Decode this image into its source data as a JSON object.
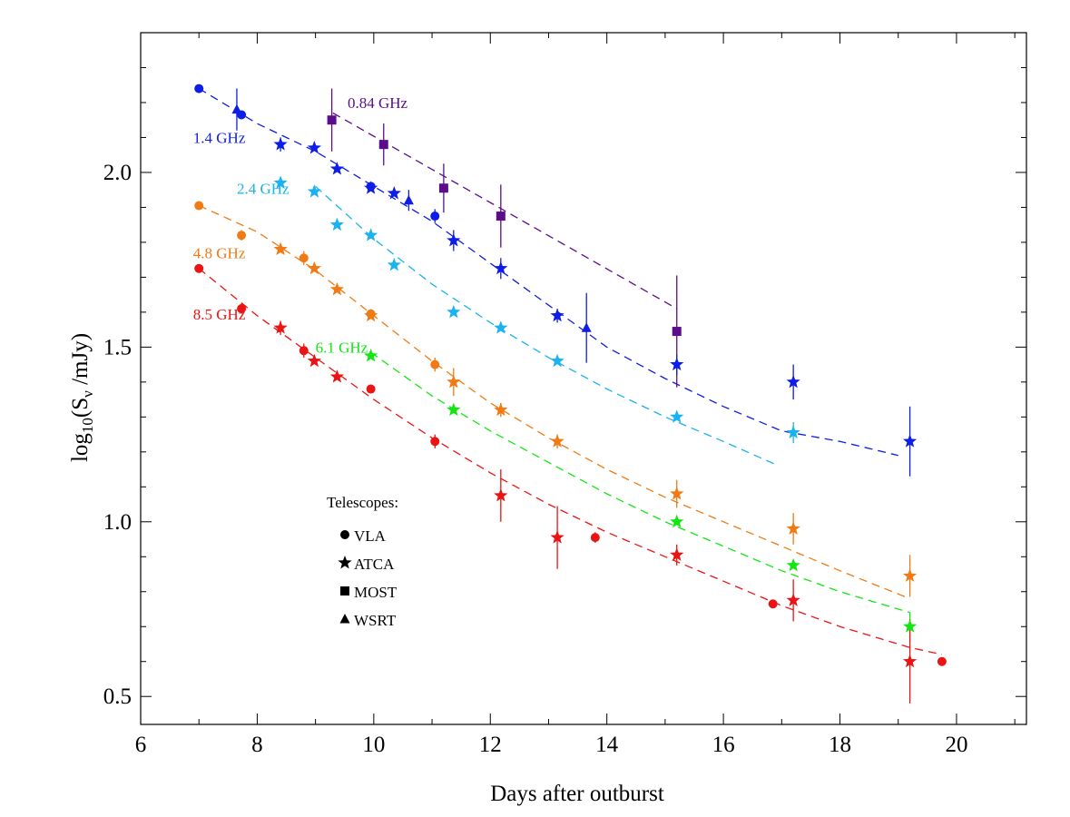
{
  "chart_data": {
    "type": "scatter",
    "xlabel": "Days after outburst",
    "ylabel": "log10(Sν /mJy)",
    "xlim": [
      6,
      21.2
    ],
    "ylim": [
      0.42,
      2.4
    ],
    "xticks": [
      6,
      8,
      10,
      12,
      14,
      16,
      18,
      20
    ],
    "xtick_labels": [
      "6",
      "8",
      "10",
      "12",
      "14",
      "16",
      "18",
      "20"
    ],
    "yticks": [
      0.5,
      1.0,
      1.5,
      2.0
    ],
    "ytick_labels": [
      "0.5",
      "1.0",
      "1.5",
      "2.0"
    ],
    "grid": false,
    "legend": {
      "title": "Telescopes:",
      "placement": "lower-left",
      "entries": [
        {
          "marker": "circle",
          "label": "VLA"
        },
        {
          "marker": "star",
          "label": "ATCA"
        },
        {
          "marker": "square",
          "label": "MOST"
        },
        {
          "marker": "triangle",
          "label": "WSRT"
        }
      ]
    },
    "series": [
      {
        "name": "0.84 GHz",
        "color": "#5c0d8c",
        "fit": [
          [
            9.3,
            2.17
          ],
          [
            15.2,
            1.61
          ]
        ],
        "points": [
          {
            "x": 9.28,
            "y": 2.15,
            "err": 0.09,
            "marker": "square"
          },
          {
            "x": 10.17,
            "y": 2.08,
            "err": 0.06,
            "marker": "square"
          },
          {
            "x": 11.2,
            "y": 1.955,
            "err": 0.07,
            "marker": "square"
          },
          {
            "x": 12.18,
            "y": 1.875,
            "err": 0.09,
            "marker": "square"
          },
          {
            "x": 15.2,
            "y": 1.545,
            "err": 0.16,
            "marker": "square"
          }
        ]
      },
      {
        "name": "1.4 GHz",
        "color": "#0e1ee6",
        "fit": [
          [
            7.0,
            2.24
          ],
          [
            8.0,
            2.14
          ],
          [
            9.0,
            2.06
          ],
          [
            10.0,
            1.96
          ],
          [
            11.0,
            1.86
          ],
          [
            12.0,
            1.74
          ],
          [
            13.0,
            1.62
          ],
          [
            14.0,
            1.5
          ],
          [
            15.0,
            1.41
          ],
          [
            16.0,
            1.33
          ],
          [
            17.0,
            1.26
          ],
          [
            18.0,
            1.23
          ],
          [
            19.0,
            1.19
          ]
        ],
        "points": [
          {
            "x": 7.0,
            "y": 2.24,
            "err": 0,
            "marker": "circle"
          },
          {
            "x": 7.65,
            "y": 2.18,
            "err": 0.06,
            "marker": "triangle"
          },
          {
            "x": 7.73,
            "y": 2.165,
            "err": 0,
            "marker": "circle"
          },
          {
            "x": 8.4,
            "y": 2.08,
            "err": 0.02,
            "marker": "star"
          },
          {
            "x": 8.98,
            "y": 2.07,
            "err": 0,
            "marker": "star"
          },
          {
            "x": 9.37,
            "y": 2.01,
            "err": 0,
            "marker": "star"
          },
          {
            "x": 9.95,
            "y": 1.955,
            "err": 0,
            "marker": "star"
          },
          {
            "x": 9.95,
            "y": 1.96,
            "err": 0,
            "marker": "circle"
          },
          {
            "x": 10.35,
            "y": 1.94,
            "err": 0,
            "marker": "star"
          },
          {
            "x": 10.6,
            "y": 1.92,
            "err": 0.03,
            "marker": "triangle"
          },
          {
            "x": 11.05,
            "y": 1.875,
            "err": 0.02,
            "marker": "circle"
          },
          {
            "x": 11.37,
            "y": 1.805,
            "err": 0.03,
            "marker": "star"
          },
          {
            "x": 12.18,
            "y": 1.725,
            "err": 0.03,
            "marker": "star"
          },
          {
            "x": 13.15,
            "y": 1.59,
            "err": 0.02,
            "marker": "star"
          },
          {
            "x": 13.65,
            "y": 1.555,
            "err": 0.1,
            "marker": "triangle"
          },
          {
            "x": 15.2,
            "y": 1.45,
            "err": 0.03,
            "marker": "star"
          },
          {
            "x": 17.2,
            "y": 1.4,
            "err": 0.05,
            "marker": "star"
          },
          {
            "x": 19.2,
            "y": 1.23,
            "err": 0.1,
            "marker": "star"
          }
        ]
      },
      {
        "name": "2.4 GHz",
        "color": "#1ab2f0",
        "fit": [
          [
            9.0,
            1.96
          ],
          [
            10.0,
            1.81
          ],
          [
            11.0,
            1.68
          ],
          [
            12.0,
            1.57
          ],
          [
            13.0,
            1.47
          ],
          [
            14.0,
            1.38
          ],
          [
            15.0,
            1.3
          ],
          [
            16.0,
            1.23
          ],
          [
            16.95,
            1.16
          ]
        ],
        "points": [
          {
            "x": 8.4,
            "y": 1.97,
            "err": 0,
            "marker": "star"
          },
          {
            "x": 8.98,
            "y": 1.945,
            "err": 0,
            "marker": "star"
          },
          {
            "x": 9.37,
            "y": 1.85,
            "err": 0,
            "marker": "star"
          },
          {
            "x": 9.95,
            "y": 1.82,
            "err": 0,
            "marker": "star"
          },
          {
            "x": 10.35,
            "y": 1.735,
            "err": 0,
            "marker": "star"
          },
          {
            "x": 11.37,
            "y": 1.6,
            "err": 0,
            "marker": "star"
          },
          {
            "x": 12.18,
            "y": 1.555,
            "err": 0,
            "marker": "star"
          },
          {
            "x": 13.15,
            "y": 1.46,
            "err": 0,
            "marker": "star"
          },
          {
            "x": 15.2,
            "y": 1.3,
            "err": 0,
            "marker": "star"
          },
          {
            "x": 17.2,
            "y": 1.255,
            "err": 0.03,
            "marker": "star"
          }
        ]
      },
      {
        "name": "4.8 GHz",
        "color": "#f07a14",
        "fit": [
          [
            7.0,
            1.905
          ],
          [
            8.0,
            1.83
          ],
          [
            9.0,
            1.72
          ],
          [
            10.0,
            1.59
          ],
          [
            11.0,
            1.46
          ],
          [
            12.0,
            1.34
          ],
          [
            13.0,
            1.24
          ],
          [
            14.0,
            1.15
          ],
          [
            15.0,
            1.07
          ],
          [
            16.0,
            1.0
          ],
          [
            17.0,
            0.93
          ],
          [
            18.0,
            0.86
          ],
          [
            19.2,
            0.78
          ]
        ],
        "points": [
          {
            "x": 7.0,
            "y": 1.905,
            "err": 0,
            "marker": "circle"
          },
          {
            "x": 7.73,
            "y": 1.82,
            "err": 0.015,
            "marker": "circle"
          },
          {
            "x": 8.4,
            "y": 1.78,
            "err": 0,
            "marker": "star"
          },
          {
            "x": 8.8,
            "y": 1.755,
            "err": 0.02,
            "marker": "circle"
          },
          {
            "x": 8.98,
            "y": 1.725,
            "err": 0,
            "marker": "star"
          },
          {
            "x": 9.37,
            "y": 1.665,
            "err": 0,
            "marker": "star"
          },
          {
            "x": 9.95,
            "y": 1.59,
            "err": 0,
            "marker": "star"
          },
          {
            "x": 9.95,
            "y": 1.595,
            "err": 0,
            "marker": "circle"
          },
          {
            "x": 11.05,
            "y": 1.45,
            "err": 0.02,
            "marker": "circle"
          },
          {
            "x": 11.37,
            "y": 1.4,
            "err": 0.04,
            "marker": "star"
          },
          {
            "x": 12.18,
            "y": 1.32,
            "err": 0.02,
            "marker": "star"
          },
          {
            "x": 13.15,
            "y": 1.23,
            "err": 0.02,
            "marker": "star"
          },
          {
            "x": 15.2,
            "y": 1.08,
            "err": 0.04,
            "marker": "star"
          },
          {
            "x": 17.2,
            "y": 0.98,
            "err": 0.045,
            "marker": "star"
          },
          {
            "x": 19.2,
            "y": 0.845,
            "err": 0.06,
            "marker": "star"
          }
        ]
      },
      {
        "name": "6.1 GHz",
        "color": "#14e614",
        "fit": [
          [
            9.95,
            1.485
          ],
          [
            11.0,
            1.36
          ],
          [
            12.0,
            1.26
          ],
          [
            13.0,
            1.17
          ],
          [
            14.0,
            1.08
          ],
          [
            15.0,
            1.0
          ],
          [
            16.0,
            0.93
          ],
          [
            17.0,
            0.86
          ],
          [
            18.0,
            0.8
          ],
          [
            19.2,
            0.74
          ]
        ],
        "points": [
          {
            "x": 9.95,
            "y": 1.475,
            "err": 0,
            "marker": "star"
          },
          {
            "x": 11.37,
            "y": 1.32,
            "err": 0,
            "marker": "star"
          },
          {
            "x": 15.2,
            "y": 1.0,
            "err": 0,
            "marker": "star"
          },
          {
            "x": 17.2,
            "y": 0.875,
            "err": 0,
            "marker": "star"
          },
          {
            "x": 19.2,
            "y": 0.7,
            "err": 0.04,
            "marker": "star"
          }
        ]
      },
      {
        "name": "8.5 GHz",
        "color": "#eb1414",
        "fit": [
          [
            7.0,
            1.725
          ],
          [
            8.0,
            1.59
          ],
          [
            9.0,
            1.47
          ],
          [
            10.0,
            1.35
          ],
          [
            11.0,
            1.24
          ],
          [
            12.0,
            1.14
          ],
          [
            13.0,
            1.05
          ],
          [
            14.0,
            0.97
          ],
          [
            15.0,
            0.9
          ],
          [
            16.0,
            0.83
          ],
          [
            17.0,
            0.76
          ],
          [
            18.0,
            0.7
          ],
          [
            19.2,
            0.64
          ],
          [
            19.75,
            0.62
          ]
        ],
        "points": [
          {
            "x": 7.0,
            "y": 1.725,
            "err": 0,
            "marker": "circle"
          },
          {
            "x": 7.73,
            "y": 1.61,
            "err": 0.015,
            "marker": "circle"
          },
          {
            "x": 8.4,
            "y": 1.555,
            "err": 0.02,
            "marker": "star"
          },
          {
            "x": 8.8,
            "y": 1.49,
            "err": 0.02,
            "marker": "circle"
          },
          {
            "x": 8.98,
            "y": 1.46,
            "err": 0,
            "marker": "star"
          },
          {
            "x": 9.37,
            "y": 1.415,
            "err": 0,
            "marker": "star"
          },
          {
            "x": 9.95,
            "y": 1.38,
            "err": 0,
            "marker": "circle"
          },
          {
            "x": 11.05,
            "y": 1.23,
            "err": 0.02,
            "marker": "circle"
          },
          {
            "x": 12.18,
            "y": 1.075,
            "err": 0.075,
            "marker": "star"
          },
          {
            "x": 13.15,
            "y": 0.955,
            "err": 0.09,
            "marker": "star"
          },
          {
            "x": 13.8,
            "y": 0.955,
            "err": 0.015,
            "marker": "circle"
          },
          {
            "x": 15.2,
            "y": 0.905,
            "err": 0.03,
            "marker": "star"
          },
          {
            "x": 16.85,
            "y": 0.765,
            "err": 0.01,
            "marker": "circle"
          },
          {
            "x": 17.2,
            "y": 0.775,
            "err": 0.06,
            "marker": "star"
          },
          {
            "x": 19.2,
            "y": 0.6,
            "err": 0.12,
            "marker": "star"
          },
          {
            "x": 19.75,
            "y": 0.6,
            "err": 0,
            "marker": "circle"
          }
        ]
      }
    ],
    "series_labels": [
      {
        "text": "0.84 GHz",
        "color": "#5c0d8c",
        "x": 9.55,
        "y": 2.2
      },
      {
        "text": "1.4 GHz",
        "color": "#0e1ee6",
        "x": 6.9,
        "y": 2.1
      },
      {
        "text": "2.4 GHz",
        "color": "#1ab2f0",
        "x": 7.65,
        "y": 1.955
      },
      {
        "text": "4.8 GHz",
        "color": "#f07a14",
        "x": 6.9,
        "y": 1.77
      },
      {
        "text": "8.5 GHz",
        "color": "#eb1414",
        "x": 6.9,
        "y": 1.595
      },
      {
        "text": "6.1 GHz",
        "color": "#14e614",
        "x": 9.0,
        "y": 1.5
      }
    ]
  }
}
